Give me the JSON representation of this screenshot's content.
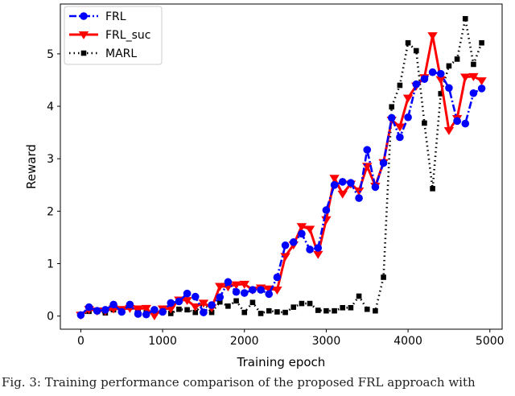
{
  "chart_data": {
    "type": "line",
    "title": "",
    "xlabel": "Training epoch",
    "ylabel": "Reward",
    "xlim": [
      -250,
      5150
    ],
    "ylim": [
      -0.25,
      5.95
    ],
    "xticks": [
      0,
      1000,
      2000,
      3000,
      4000,
      5000
    ],
    "yticks": [
      0,
      1,
      2,
      3,
      4,
      5
    ],
    "grid": false,
    "legend_position": "top-left",
    "x": [
      0,
      100,
      200,
      300,
      400,
      500,
      600,
      700,
      800,
      900,
      1000,
      1100,
      1200,
      1300,
      1400,
      1500,
      1600,
      1700,
      1800,
      1900,
      2000,
      2100,
      2200,
      2300,
      2400,
      2500,
      2600,
      2700,
      2800,
      2900,
      3000,
      3100,
      3200,
      3300,
      3400,
      3500,
      3600,
      3700,
      3800,
      3900,
      4000,
      4100,
      4200,
      4300,
      4400,
      4500,
      4600,
      4700,
      4800,
      4900
    ],
    "series": [
      {
        "name": "FRL",
        "color": "#0000ff",
        "linestyle": "dashdot",
        "marker": "circle",
        "values": [
          0.02,
          0.17,
          0.1,
          0.12,
          0.22,
          0.08,
          0.22,
          0.04,
          0.03,
          0.12,
          0.08,
          0.25,
          0.28,
          0.43,
          0.37,
          0.07,
          0.21,
          0.36,
          0.65,
          0.46,
          0.44,
          0.5,
          0.5,
          0.42,
          0.74,
          1.35,
          1.41,
          1.57,
          1.27,
          1.3,
          2.02,
          2.5,
          2.56,
          2.54,
          2.25,
          3.17,
          2.46,
          2.92,
          3.78,
          3.41,
          3.79,
          4.42,
          4.52,
          4.65,
          4.62,
          4.35,
          3.72,
          3.67,
          4.25,
          4.34
        ]
      },
      {
        "name": "FRL_suc",
        "color": "#ff0000",
        "linestyle": "solid",
        "marker": "triangle-down",
        "values": [
          0.02,
          0.13,
          0.1,
          0.1,
          0.14,
          0.13,
          0.15,
          0.14,
          0.15,
          0.01,
          0.14,
          0.14,
          0.31,
          0.3,
          0.18,
          0.25,
          0.16,
          0.57,
          0.56,
          0.6,
          0.61,
          0.5,
          0.54,
          0.52,
          0.5,
          1.14,
          1.36,
          1.71,
          1.66,
          1.18,
          1.84,
          2.63,
          2.33,
          2.52,
          2.39,
          2.86,
          2.48,
          2.93,
          3.74,
          3.61,
          4.16,
          4.39,
          4.55,
          5.35,
          4.51,
          3.54,
          3.77,
          4.56,
          4.57,
          4.49
        ]
      },
      {
        "name": "MARL",
        "color": "#000000",
        "linestyle": "dotted",
        "marker": "square",
        "values": [
          0.02,
          0.09,
          0.09,
          0.06,
          0.12,
          0.09,
          0.17,
          0.11,
          0.07,
          0.07,
          0.11,
          0.05,
          0.13,
          0.12,
          0.07,
          0.25,
          0.07,
          0.27,
          0.19,
          0.29,
          0.07,
          0.26,
          0.05,
          0.1,
          0.08,
          0.07,
          0.17,
          0.24,
          0.24,
          0.11,
          0.1,
          0.1,
          0.16,
          0.16,
          0.38,
          0.13,
          0.1,
          0.74,
          3.99,
          4.4,
          5.21,
          5.06,
          3.68,
          2.43,
          4.24,
          4.77,
          4.9,
          5.67,
          4.8,
          5.21
        ]
      }
    ]
  },
  "caption": {
    "text": "Fig. 3:  Training performance comparison of the proposed FRL approach with"
  }
}
